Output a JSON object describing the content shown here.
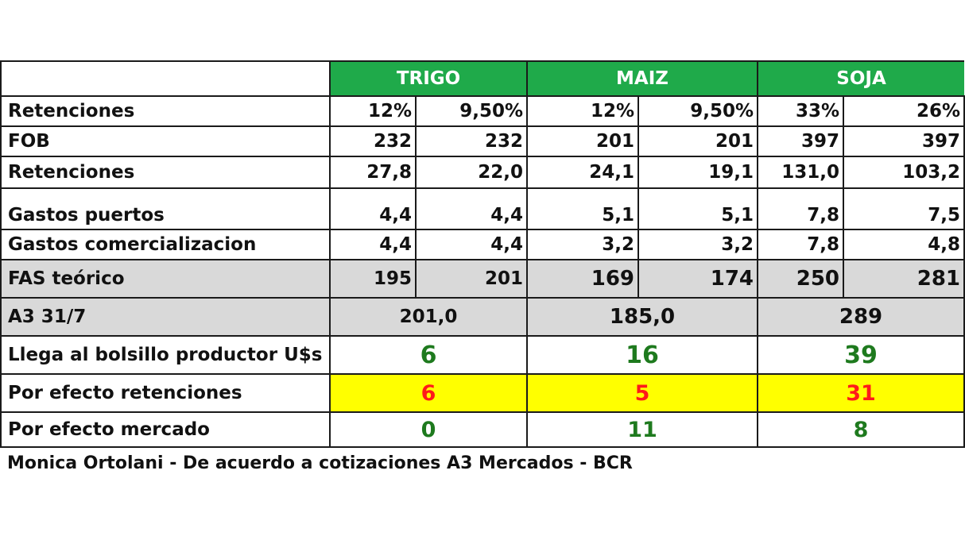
{
  "colors": {
    "header_green": "#1faa4a",
    "value_green": "#1e7a1e",
    "value_red": "#ff1a1a",
    "highlight_yellow": "#ffff00",
    "row_gray": "#d9d9d9"
  },
  "table": {
    "headers": [
      "TRIGO",
      "MAIZ",
      "SOJA"
    ],
    "rows": [
      {
        "label": "Retenciones",
        "values": [
          "12%",
          "9,50%",
          "12%",
          "9,50%",
          "33%",
          "26%"
        ]
      },
      {
        "label": "FOB",
        "values": [
          "232",
          "232",
          "201",
          "201",
          "397",
          "397"
        ]
      },
      {
        "label": "Retenciones",
        "values": [
          "27,8",
          "22,0",
          "24,1",
          "19,1",
          "131,0",
          "103,2"
        ]
      },
      {
        "label": "Gastos puertos",
        "values": [
          "4,4",
          "4,4",
          "5,1",
          "5,1",
          "7,8",
          "7,5"
        ]
      },
      {
        "label": "Gastos comercializacion",
        "values": [
          "4,4",
          "4,4",
          "3,2",
          "3,2",
          "7,8",
          "4,8"
        ]
      },
      {
        "label": "FAS  teórico",
        "values": [
          "195",
          "201",
          "169",
          "174",
          "250",
          "281"
        ]
      }
    ],
    "a3_row": {
      "label": "A3  31/7",
      "values": [
        "201,0",
        "185,0",
        "289"
      ]
    },
    "bolsillo_row": {
      "label": "Llega al bolsillo productor U$s",
      "values": [
        "6",
        "16",
        "39"
      ]
    },
    "retenciones_row": {
      "label": "Por efecto retenciones",
      "values": [
        "6",
        "5",
        "31"
      ]
    },
    "mercado_row": {
      "label": "Por efecto mercado",
      "values": [
        "0",
        "11",
        "8"
      ]
    }
  },
  "footer": "Monica Ortolani - De acuerdo a cotizaciones  A3 Mercados  - BCR"
}
